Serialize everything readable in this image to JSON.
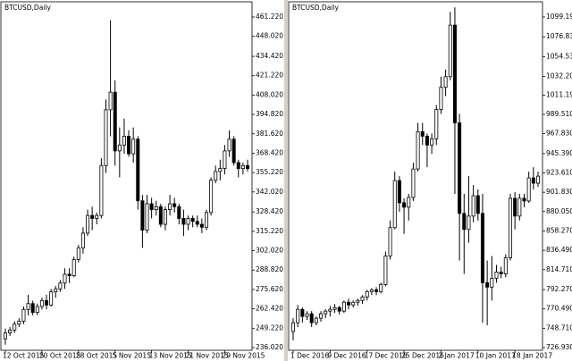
{
  "chart_data": [
    {
      "type": "candlestick",
      "title": "BTCUSD,Daily",
      "categories": [
        "12 Oct 2015",
        null,
        null,
        null,
        null,
        null,
        null,
        null,
        "20 Oct 2015",
        null,
        null,
        null,
        null,
        null,
        null,
        null,
        "28 Oct 2015",
        null,
        null,
        null,
        null,
        null,
        null,
        null,
        "5 Nov 2015",
        null,
        null,
        null,
        null,
        null,
        null,
        null,
        "13 Nov 2015",
        null,
        null,
        null,
        null,
        null,
        null,
        null,
        "21 Nov 2015",
        null,
        null,
        null,
        null,
        null,
        null,
        null,
        "29 Nov 2015",
        null,
        null,
        null,
        null,
        null
      ],
      "open": [
        242,
        246,
        248,
        252,
        254,
        262,
        266,
        260,
        264,
        268,
        265,
        274,
        276,
        280,
        286,
        285,
        296,
        304,
        314,
        326,
        324,
        326,
        360,
        398,
        410,
        370,
        374,
        380,
        368,
        378,
        336,
        316,
        334,
        330,
        332,
        320,
        330,
        334,
        332,
        324,
        320,
        324,
        322,
        320,
        318,
        328,
        350,
        356,
        358,
        370,
        378,
        362,
        358,
        360
      ],
      "high": [
        249,
        250,
        254,
        256,
        264,
        272,
        268,
        266,
        270,
        272,
        276,
        278,
        282,
        290,
        290,
        298,
        306,
        318,
        330,
        332,
        328,
        365,
        405,
        459,
        418,
        386,
        392,
        384,
        386,
        380,
        340,
        340,
        338,
        336,
        334,
        332,
        340,
        338,
        334,
        330,
        326,
        326,
        326,
        324,
        330,
        352,
        360,
        364,
        374,
        384,
        380,
        364,
        362,
        364
      ],
      "low": [
        238,
        244,
        246,
        250,
        252,
        258,
        258,
        258,
        262,
        262,
        264,
        270,
        274,
        276,
        280,
        284,
        294,
        300,
        312,
        316,
        320,
        324,
        355,
        380,
        360,
        352,
        368,
        366,
        362,
        330,
        304,
        314,
        324,
        326,
        318,
        316,
        326,
        328,
        320,
        312,
        316,
        318,
        318,
        314,
        316,
        326,
        348,
        350,
        354,
        366,
        360,
        352,
        354,
        356
      ],
      "close": [
        246,
        248,
        252,
        254,
        262,
        266,
        260,
        264,
        268,
        265,
        274,
        276,
        280,
        286,
        285,
        296,
        304,
        314,
        326,
        324,
        326,
        360,
        398,
        410,
        370,
        374,
        380,
        368,
        378,
        336,
        316,
        334,
        330,
        332,
        320,
        330,
        334,
        332,
        324,
        320,
        324,
        322,
        320,
        318,
        328,
        350,
        356,
        358,
        370,
        378,
        362,
        358,
        360,
        358
      ],
      "ylim": [
        234.19,
        471.57
      ],
      "yticks": [
        {
          "value": 461.22,
          "label": "461.220"
        },
        {
          "value": 448.02,
          "label": "448.020"
        },
        {
          "value": 434.42,
          "label": "434.420"
        },
        {
          "value": 421.22,
          "label": "421.220"
        },
        {
          "value": 408.02,
          "label": "408.020"
        },
        {
          "value": 394.82,
          "label": "394.820"
        },
        {
          "value": 381.62,
          "label": "381.620"
        },
        {
          "value": 368.42,
          "label": "368.420"
        },
        {
          "value": 355.22,
          "label": "355.220"
        },
        {
          "value": 342.02,
          "label": "342.020"
        },
        {
          "value": 328.42,
          "label": "328.420"
        },
        {
          "value": 315.22,
          "label": "315.220"
        },
        {
          "value": 302.02,
          "label": "302.020"
        },
        {
          "value": 288.82,
          "label": "288.820"
        },
        {
          "value": 275.62,
          "label": "275.620"
        },
        {
          "value": 262.42,
          "label": "262.420"
        },
        {
          "value": 249.22,
          "label": "249.220"
        },
        {
          "value": 236.02,
          "label": "236.020"
        }
      ],
      "up_color": "#ffffff",
      "down_color": "#000000"
    },
    {
      "type": "candlestick",
      "title": "BTCUSD,Daily",
      "categories": [
        "1 Dec 2016",
        null,
        null,
        null,
        null,
        null,
        null,
        null,
        "9 Dec 2016",
        null,
        null,
        null,
        null,
        null,
        null,
        null,
        "17 Dec 2016",
        null,
        null,
        null,
        null,
        null,
        null,
        null,
        "25 Dec 2016",
        null,
        null,
        null,
        null,
        null,
        null,
        null,
        "2 Jan 2017",
        null,
        null,
        null,
        null,
        null,
        null,
        null,
        "10 Jan 2017",
        null,
        null,
        null,
        null,
        null,
        null,
        null,
        "18 Jan 2017",
        null,
        null,
        null,
        null,
        null
      ],
      "open": [
        745,
        755,
        770,
        762,
        765,
        755,
        760,
        765,
        768,
        770,
        772,
        768,
        778,
        775,
        778,
        780,
        784,
        790,
        792,
        790,
        798,
        830,
        862,
        915,
        890,
        885,
        896,
        928,
        970,
        965,
        955,
        962,
        995,
        1020,
        1032,
        1090,
        980,
        878,
        860,
        875,
        898,
        878,
        800,
        795,
        805,
        812,
        810,
        828,
        895,
        875,
        895,
        892,
        918,
        912
      ],
      "high": [
        760,
        775,
        772,
        768,
        768,
        762,
        768,
        770,
        774,
        776,
        774,
        780,
        782,
        780,
        782,
        786,
        792,
        794,
        795,
        800,
        835,
        870,
        925,
        920,
        895,
        900,
        935,
        980,
        980,
        968,
        968,
        1000,
        1032,
        1040,
        1105,
        1110,
        990,
        900,
        920,
        910,
        905,
        900,
        825,
        830,
        820,
        818,
        832,
        900,
        902,
        900,
        900,
        925,
        930,
        925
      ],
      "low": [
        735,
        750,
        755,
        758,
        750,
        752,
        756,
        760,
        762,
        766,
        764,
        766,
        770,
        772,
        774,
        776,
        780,
        786,
        786,
        788,
        796,
        826,
        860,
        880,
        855,
        870,
        892,
        925,
        955,
        930,
        945,
        955,
        990,
        1010,
        1028,
        900,
        825,
        810,
        845,
        868,
        870,
        755,
        752,
        780,
        800,
        805,
        806,
        825,
        860,
        870,
        885,
        890,
        905,
        908
      ],
      "close": [
        755,
        770,
        762,
        765,
        755,
        760,
        765,
        768,
        770,
        772,
        768,
        778,
        775,
        778,
        780,
        784,
        790,
        792,
        790,
        798,
        830,
        862,
        915,
        890,
        885,
        896,
        928,
        970,
        965,
        955,
        962,
        995,
        1020,
        1032,
        1090,
        980,
        878,
        860,
        875,
        898,
        878,
        800,
        795,
        805,
        812,
        810,
        828,
        895,
        875,
        895,
        892,
        918,
        912,
        920
      ],
      "ylim": [
        723.91,
        1116.29
      ],
      "yticks": [
        {
          "value": 1099.19,
          "label": "1099.190"
        },
        {
          "value": 1076.83,
          "label": "1076.830"
        },
        {
          "value": 1054.53,
          "label": "1054.530"
        },
        {
          "value": 1032.2,
          "label": "1032.200"
        },
        {
          "value": 1011.19,
          "label": "1011.190"
        },
        {
          "value": 989.51,
          "label": "989.510"
        },
        {
          "value": 967.83,
          "label": "967.830"
        },
        {
          "value": 945.39,
          "label": "945.390"
        },
        {
          "value": 923.61,
          "label": "923.610"
        },
        {
          "value": 901.83,
          "label": "901.830"
        },
        {
          "value": 880.05,
          "label": "880.050"
        },
        {
          "value": 858.27,
          "label": "858.270"
        },
        {
          "value": 836.49,
          "label": "836.490"
        },
        {
          "value": 814.71,
          "label": "814.710"
        },
        {
          "value": 792.27,
          "label": "792.270"
        },
        {
          "value": 770.49,
          "label": "770.490"
        },
        {
          "value": 748.71,
          "label": "748.710"
        },
        {
          "value": 726.93,
          "label": "726.930"
        }
      ],
      "up_color": "#ffffff",
      "down_color": "#000000"
    }
  ]
}
